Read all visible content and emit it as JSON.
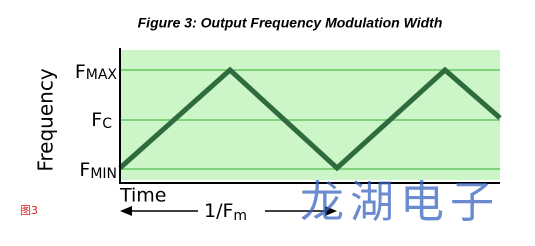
{
  "title": "Figure 3: Output Frequency Modulation Width",
  "y_axis_label": "Frequency",
  "levels": [
    {
      "main": "F",
      "sub": "MAX"
    },
    {
      "main": "F",
      "sub": "C"
    },
    {
      "main": "F",
      "sub": "MIN"
    }
  ],
  "x_axis_label": "Time",
  "period_label": {
    "main": "1/F",
    "sub": "m"
  },
  "caption": "图3",
  "watermark": "龙湖电子"
}
